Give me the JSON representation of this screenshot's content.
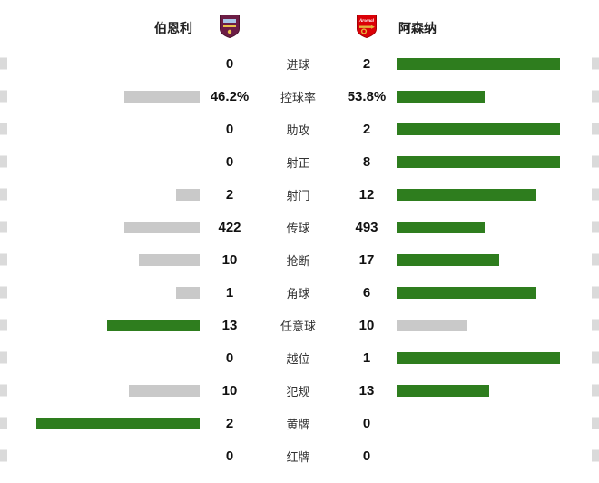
{
  "header": {
    "home_team": "伯恩利",
    "away_team": "阿森纳",
    "away_crest_text": "Arsenal"
  },
  "colors": {
    "win_bar": "#2e7d1e",
    "lose_bar": "#c9c9c9",
    "edge_stub": "#dadada"
  },
  "chart_data": {
    "type": "bar",
    "layout": "horizontal diverging comparison; winner bar green, loser bar gray; bar length proportional to share of row total (100% = 180px)",
    "categories": [
      "进球",
      "控球率",
      "助攻",
      "射正",
      "射门",
      "传球",
      "抢断",
      "角球",
      "任意球",
      "越位",
      "犯规",
      "黄牌",
      "红牌"
    ],
    "series": [
      {
        "name": "伯恩利",
        "values": [
          0,
          46.2,
          0,
          0,
          2,
          422,
          10,
          1,
          13,
          0,
          10,
          2,
          0
        ]
      },
      {
        "name": "阿森纳",
        "values": [
          2,
          53.8,
          2,
          8,
          12,
          493,
          17,
          6,
          10,
          1,
          13,
          0,
          0
        ]
      }
    ]
  },
  "stats": [
    {
      "label": "进球",
      "home": "0",
      "away": "2",
      "home_pct": 0,
      "away_pct": 100,
      "winner": "away"
    },
    {
      "label": "控球率",
      "home": "46.2%",
      "away": "53.8%",
      "home_pct": 46.2,
      "away_pct": 53.8,
      "winner": "away"
    },
    {
      "label": "助攻",
      "home": "0",
      "away": "2",
      "home_pct": 0,
      "away_pct": 100,
      "winner": "away"
    },
    {
      "label": "射正",
      "home": "0",
      "away": "8",
      "home_pct": 0,
      "away_pct": 100,
      "winner": "away"
    },
    {
      "label": "射门",
      "home": "2",
      "away": "12",
      "home_pct": 14.3,
      "away_pct": 85.7,
      "winner": "away"
    },
    {
      "label": "传球",
      "home": "422",
      "away": "493",
      "home_pct": 46.1,
      "away_pct": 53.9,
      "winner": "away"
    },
    {
      "label": "抢断",
      "home": "10",
      "away": "17",
      "home_pct": 37,
      "away_pct": 63,
      "winner": "away"
    },
    {
      "label": "角球",
      "home": "1",
      "away": "6",
      "home_pct": 14.3,
      "away_pct": 85.7,
      "winner": "away"
    },
    {
      "label": "任意球",
      "home": "13",
      "away": "10",
      "home_pct": 56.5,
      "away_pct": 43.5,
      "winner": "home"
    },
    {
      "label": "越位",
      "home": "0",
      "away": "1",
      "home_pct": 0,
      "away_pct": 100,
      "winner": "away"
    },
    {
      "label": "犯规",
      "home": "10",
      "away": "13",
      "home_pct": 43.5,
      "away_pct": 56.5,
      "winner": "away"
    },
    {
      "label": "黄牌",
      "home": "2",
      "away": "0",
      "home_pct": 100,
      "away_pct": 0,
      "winner": "home"
    },
    {
      "label": "红牌",
      "home": "0",
      "away": "0",
      "home_pct": 0,
      "away_pct": 0,
      "winner": "none"
    }
  ]
}
